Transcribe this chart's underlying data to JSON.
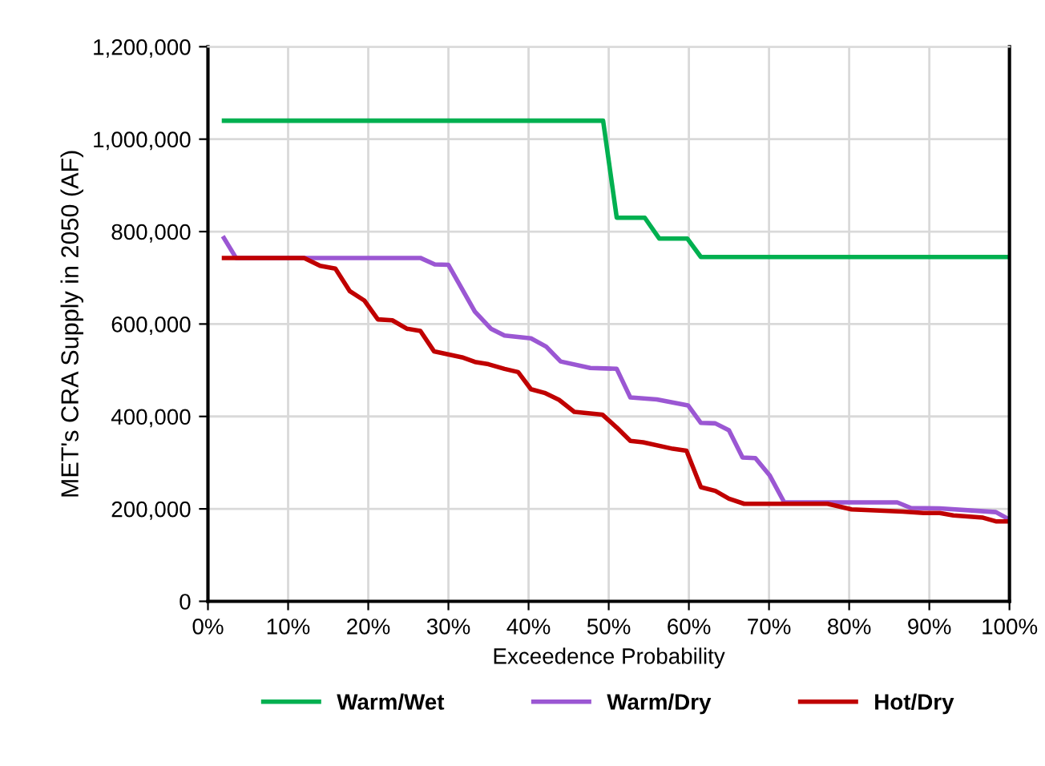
{
  "chart_data": {
    "type": "line",
    "xlabel": "Exceedence Probability",
    "ylabel": "MET's CRA Supply in 2050 (AF)",
    "xlim": [
      0,
      100
    ],
    "xticks": [
      {
        "value": 0,
        "label": "0%"
      },
      {
        "value": 10,
        "label": "10%"
      },
      {
        "value": 20,
        "label": "20%"
      },
      {
        "value": 30,
        "label": "30%"
      },
      {
        "value": 40,
        "label": "40%"
      },
      {
        "value": 50,
        "label": "50%"
      },
      {
        "value": 60,
        "label": "60%"
      },
      {
        "value": 70,
        "label": "70%"
      },
      {
        "value": 80,
        "label": "80%"
      },
      {
        "value": 90,
        "label": "90%"
      },
      {
        "value": 100,
        "label": "100%"
      }
    ],
    "ylim": [
      0,
      1200000
    ],
    "yticks": [
      {
        "value": 0,
        "label": "0"
      },
      {
        "value": 200000,
        "label": "200,000"
      },
      {
        "value": 400000,
        "label": "400,000"
      },
      {
        "value": 600000,
        "label": "600,000"
      },
      {
        "value": 800000,
        "label": "800,000"
      },
      {
        "value": 1000000,
        "label": "1,000,000"
      },
      {
        "value": 1200000,
        "label": "1,200,000"
      }
    ],
    "grid": true,
    "legend": "bottom",
    "marker": "none",
    "line_style": "solid",
    "series": [
      {
        "name": "Warm/Wet",
        "color": "#00b050",
        "x": [
          2,
          49.3,
          51,
          54.5,
          56.3,
          59.8,
          61.5,
          100
        ],
        "values": [
          1040000,
          1040000,
          830000,
          830000,
          785000,
          785000,
          745000,
          745000
        ]
      },
      {
        "name": "Warm/Dry",
        "color": "#9b57d3",
        "x": [
          2,
          3.5,
          26.5,
          28.3,
          30,
          31.7,
          33.3,
          35.3,
          37,
          40.3,
          42.2,
          44,
          47.7,
          51,
          52.7,
          56,
          59.9,
          61.5,
          63.3,
          65,
          66.7,
          68.3,
          70.1,
          71.9,
          86,
          87.7,
          91.3,
          98.3,
          100
        ],
        "values": [
          786000,
          743000,
          743000,
          729000,
          728000,
          676000,
          627000,
          590000,
          575000,
          569000,
          551000,
          519000,
          505000,
          503000,
          441000,
          437000,
          424000,
          386000,
          385000,
          370000,
          311000,
          310000,
          272000,
          214000,
          214000,
          202000,
          201000,
          193000,
          177000
        ]
      },
      {
        "name": "Hot/Dry",
        "color": "#c00000",
        "x": [
          2,
          12,
          14,
          15.9,
          17.7,
          19.5,
          21.2,
          23,
          24.8,
          26.5,
          28.2,
          31.7,
          33.3,
          35,
          37,
          38.7,
          40.3,
          42,
          43.8,
          45.7,
          49.2,
          51,
          52.7,
          54.3,
          58,
          59.7,
          61.5,
          63.3,
          65,
          66.9,
          77.3,
          80.3,
          86.7,
          89.3,
          91.3,
          93,
          96.7,
          98.3,
          100
        ],
        "values": [
          743000,
          743000,
          726000,
          720000,
          671000,
          651000,
          610000,
          608000,
          590000,
          585000,
          541000,
          528000,
          518000,
          513000,
          503000,
          496000,
          459000,
          451000,
          436000,
          410000,
          404000,
          376000,
          347000,
          344000,
          330000,
          326000,
          247000,
          239000,
          222000,
          211000,
          211000,
          199000,
          194000,
          191000,
          191000,
          186000,
          181000,
          173000,
          173000
        ]
      }
    ]
  }
}
